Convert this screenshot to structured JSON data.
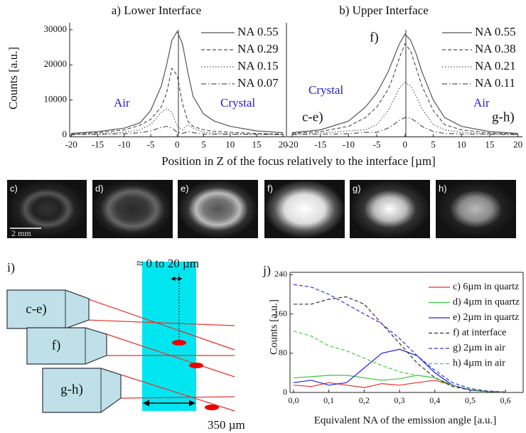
{
  "chart_data": [
    {
      "type": "line",
      "title": "a) Lower Interface",
      "xlabel": "Position in Z of the focus relatively to the interface [µm]",
      "ylabel": "Counts [a.u.]",
      "x": [
        -20,
        -15,
        -10,
        -7,
        -5,
        -3,
        -2,
        -1,
        0,
        1,
        2,
        3,
        5,
        7,
        10,
        15,
        20
      ],
      "series": [
        {
          "name": "NA 0.55",
          "color": "#555555",
          "dash": "solid",
          "values": [
            500,
            1000,
            2000,
            3500,
            7000,
            14000,
            20000,
            27000,
            29500,
            26000,
            18000,
            11000,
            6000,
            4000,
            2500,
            1200,
            700
          ]
        },
        {
          "name": "NA 0.29",
          "color": "#555555",
          "dash": "dashed",
          "values": [
            300,
            700,
            1500,
            2800,
            4500,
            8000,
            12000,
            19000,
            17000,
            9000,
            4000,
            2500,
            1500,
            1100,
            800,
            500,
            300
          ]
        },
        {
          "name": "NA 0.15",
          "color": "#555555",
          "dash": "dotted",
          "values": [
            200,
            400,
            800,
            1500,
            3000,
            6500,
            7500,
            6500,
            2500,
            1500,
            3000,
            2000,
            800,
            600,
            400,
            300,
            200
          ]
        },
        {
          "name": "NA 0.07",
          "color": "#555555",
          "dash": "dashdot",
          "values": [
            100,
            200,
            400,
            700,
            1200,
            2200,
            2500,
            2000,
            800,
            500,
            1000,
            700,
            300,
            250,
            200,
            150,
            100
          ]
        }
      ],
      "annotations": [
        {
          "text": "Air",
          "color": "#2222cc"
        },
        {
          "text": "Crystal",
          "color": "#2222cc"
        }
      ],
      "xlim": [
        -20.3,
        20.5
      ],
      "xticks": [
        -20,
        -15,
        -10,
        -5,
        0,
        5,
        10,
        15,
        20
      ],
      "ylim": [
        -500,
        32000
      ],
      "yticks": [
        0,
        10000,
        20000,
        30000
      ]
    },
    {
      "type": "line",
      "title": "b) Upper Interface",
      "x": [
        -20,
        -15,
        -10,
        -7,
        -5,
        -3,
        -2,
        -1,
        0,
        1,
        2,
        3,
        5,
        7,
        10,
        15,
        20
      ],
      "series": [
        {
          "name": "NA 0.55",
          "color": "#555555",
          "dash": "solid",
          "values": [
            700,
            1500,
            4000,
            8000,
            12000,
            18000,
            22000,
            26000,
            28800,
            27000,
            23000,
            18000,
            10000,
            5000,
            2500,
            1000,
            500
          ]
        },
        {
          "name": "NA 0.38",
          "color": "#555555",
          "dash": "dashed",
          "values": [
            500,
            1000,
            2500,
            5000,
            8000,
            13000,
            17000,
            22000,
            26000,
            24000,
            19000,
            14000,
            7000,
            3000,
            1500,
            600,
            300
          ]
        },
        {
          "name": "NA 0.21",
          "color": "#555555",
          "dash": "dotted",
          "values": [
            300,
            600,
            1200,
            1500,
            3000,
            7000,
            10000,
            13500,
            15000,
            14000,
            11000,
            7500,
            3000,
            1500,
            800,
            400,
            200
          ]
        },
        {
          "name": "NA 0.11",
          "color": "#555555",
          "dash": "dashdot",
          "values": [
            100,
            200,
            400,
            800,
            800,
            2000,
            3000,
            4200,
            5000,
            4800,
            3800,
            2500,
            1000,
            500,
            300,
            200,
            100
          ]
        }
      ],
      "annotations": [
        {
          "text": "Crystal",
          "color": "#2222cc"
        },
        {
          "text": "Air",
          "color": "#2222cc"
        },
        {
          "text": "f)",
          "color": "#111111"
        },
        {
          "text": "c-e)",
          "color": "#111111"
        },
        {
          "text": "g-h)",
          "color": "#111111"
        }
      ],
      "xlim": [
        -21,
        20.8
      ],
      "xticks": [
        -20,
        -15,
        -10,
        -5,
        0,
        5,
        10,
        15,
        20
      ],
      "ylim": [
        -500,
        32000
      ]
    },
    {
      "type": "line",
      "title": "j)",
      "xlabel": "Equivalent NA of the emission angle [a.u.]",
      "ylabel": "Counts [a.u.]",
      "x": [
        0,
        0.05,
        0.1,
        0.15,
        0.2,
        0.25,
        0.3,
        0.35,
        0.4,
        0.45,
        0.5,
        0.55,
        0.6
      ],
      "series": [
        {
          "name": "c) 6µm in quartz",
          "color": "#e8302a",
          "dash": "solid",
          "values": [
            15,
            12,
            20,
            15,
            10,
            18,
            15,
            20,
            25,
            15,
            5,
            2,
            1
          ]
        },
        {
          "name": "d) 4µm in quartz",
          "color": "#3cc43c",
          "dash": "solid",
          "values": [
            30,
            32,
            35,
            35,
            30,
            25,
            28,
            35,
            30,
            15,
            5,
            2,
            1
          ]
        },
        {
          "name": "e) 2µm in quartz",
          "color": "#2020e0",
          "dash": "solid",
          "values": [
            20,
            25,
            15,
            20,
            50,
            80,
            88,
            75,
            40,
            15,
            5,
            2,
            1
          ]
        },
        {
          "name": "f) at interface",
          "color": "#333333",
          "dash": "dashed",
          "values": [
            180,
            180,
            190,
            195,
            180,
            140,
            100,
            60,
            30,
            12,
            5,
            2,
            1
          ]
        },
        {
          "name": "g) 2µm in air",
          "color": "#3333dd",
          "dash": "dashed",
          "values": [
            220,
            215,
            200,
            180,
            160,
            140,
            110,
            75,
            45,
            20,
            8,
            3,
            1
          ]
        },
        {
          "name": "h) 4µm in air",
          "color": "#44cc44",
          "dash": "dashed",
          "values": [
            125,
            115,
            95,
            85,
            70,
            55,
            42,
            35,
            30,
            15,
            6,
            2,
            1
          ]
        }
      ],
      "xlim": [
        -0.01,
        0.65
      ],
      "xticks": [
        {
          "value": 0,
          "label": "0,0"
        },
        {
          "value": 0.1,
          "label": "0,1"
        },
        {
          "value": 0.2,
          "label": "0,2"
        },
        {
          "value": 0.3,
          "label": "0,3"
        },
        {
          "value": 0.4,
          "label": "0,4"
        },
        {
          "value": 0.5,
          "label": "0,5"
        },
        {
          "value": 0.6,
          "label": "0,6"
        }
      ],
      "ylim": [
        0,
        245
      ],
      "yticks": [
        0,
        80,
        160,
        240
      ]
    }
  ],
  "images": {
    "labels": [
      "c)",
      "d)",
      "e)",
      "f)",
      "g)",
      "h)"
    ],
    "scale_bar": "2 mm"
  },
  "diagram": {
    "label": "i)",
    "gap": "≈ 0 to 20 µm",
    "objectives": [
      "c-e)",
      "f)",
      "g-h)"
    ],
    "width": "350 µm"
  }
}
